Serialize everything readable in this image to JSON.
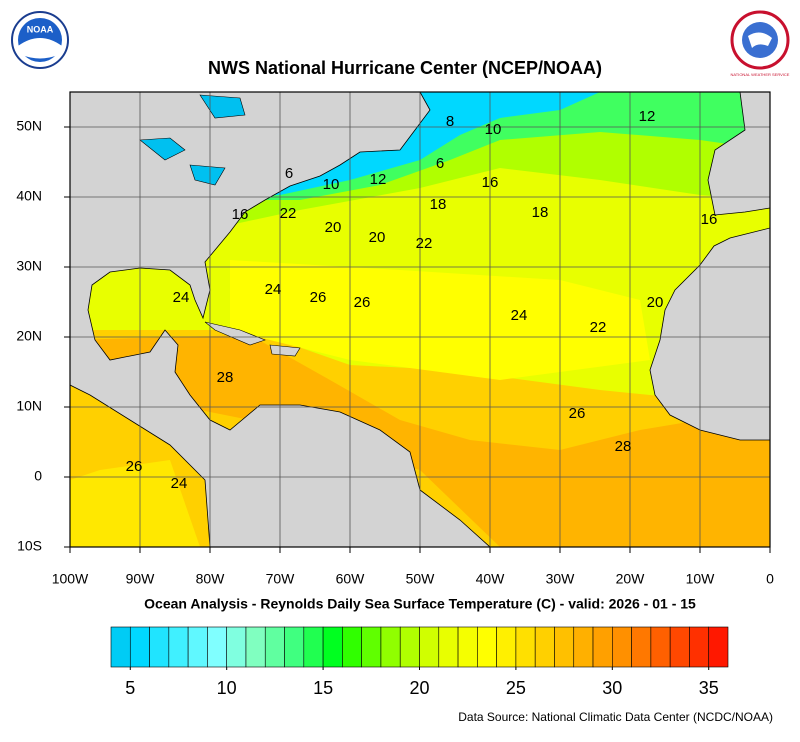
{
  "header": {
    "title": "NWS National Hurricane Center (NCEP/NOAA)",
    "subtitle": "Ocean Analysis - Reynolds Daily Sea Surface Temperature (C) - valid: 2026 - 01 - 15",
    "source": "Data Source: National Climatic Data Center (NCDC/NOAA)"
  },
  "logos": {
    "noaa": "NOAA",
    "nws": "NATIONAL WEATHER SERVICE"
  },
  "map": {
    "xlim": [
      -100,
      0
    ],
    "ylim": [
      -10,
      55
    ],
    "xticks": [
      {
        "value": -100,
        "label": "100W"
      },
      {
        "value": -90,
        "label": "90W"
      },
      {
        "value": -80,
        "label": "80W"
      },
      {
        "value": -70,
        "label": "70W"
      },
      {
        "value": -60,
        "label": "60W"
      },
      {
        "value": -50,
        "label": "50W"
      },
      {
        "value": -40,
        "label": "40W"
      },
      {
        "value": -30,
        "label": "30W"
      },
      {
        "value": -20,
        "label": "20W"
      },
      {
        "value": -10,
        "label": "10W"
      },
      0
    ],
    "yticks": [
      {
        "value": -10,
        "label": "10S"
      },
      0,
      {
        "value": 10,
        "label": "10N"
      },
      {
        "value": 20,
        "label": "20N"
      },
      {
        "value": 30,
        "label": "30N"
      },
      {
        "value": 40,
        "label": "40N"
      },
      {
        "value": 50,
        "label": "50N"
      }
    ],
    "grid": true,
    "contour_labels": [
      8,
      10,
      12,
      6,
      10,
      12,
      6,
      16,
      16,
      22,
      18,
      18,
      16,
      20,
      20,
      22,
      24,
      24,
      26,
      26,
      24,
      22,
      20,
      28,
      26,
      28,
      26,
      24
    ]
  },
  "colorbar": {
    "range": [
      4,
      36
    ],
    "ticks": [
      5,
      10,
      15,
      20,
      25,
      30,
      35
    ],
    "colors": [
      "#00ccf5",
      "#00d8ff",
      "#20e4ff",
      "#40f0ff",
      "#60f8ff",
      "#80ffff",
      "#80ffe0",
      "#80ffc0",
      "#60ffa0",
      "#40ff80",
      "#20ff50",
      "#00ff20",
      "#30ff00",
      "#60ff00",
      "#90ff00",
      "#b0ff00",
      "#d0ff00",
      "#e8ff00",
      "#f5ff00",
      "#ffff00",
      "#fff000",
      "#ffe000",
      "#ffd000",
      "#ffc000",
      "#ffb000",
      "#ffa000",
      "#ff9000",
      "#ff7800",
      "#ff6000",
      "#ff4800",
      "#ff3000",
      "#ff1800"
    ]
  }
}
